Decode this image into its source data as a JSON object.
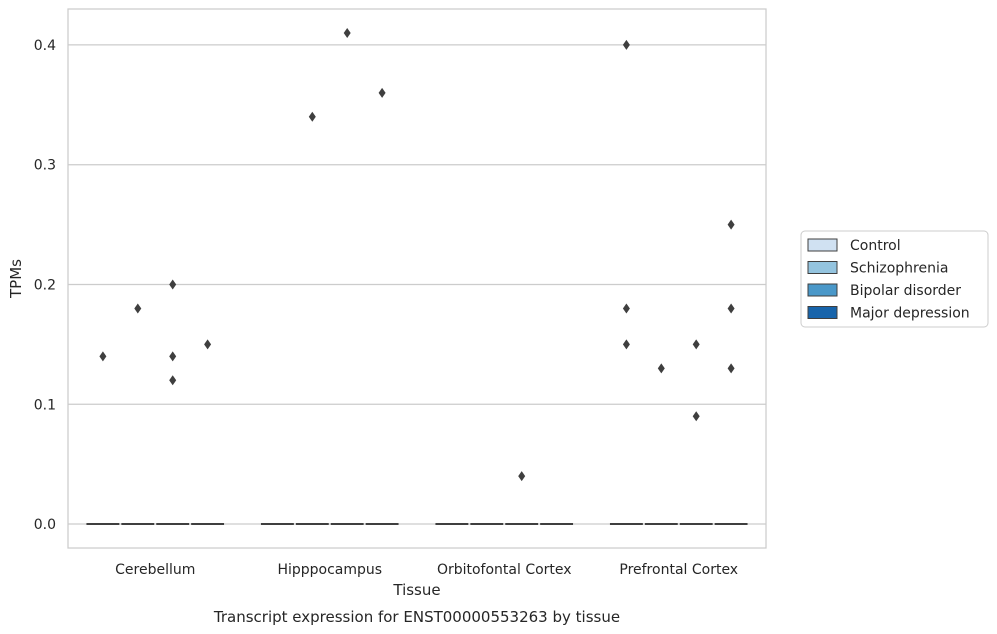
{
  "chart_data": {
    "type": "box",
    "xlabel": "Tissue",
    "ylabel": "TPMs",
    "caption": "Transcript expression for ENST00000553263 by tissue",
    "categories": [
      "Cerebellum",
      "Hipppocampus",
      "Orbitofontal Cortex",
      "Prefrontal Cortex"
    ],
    "ylim": [
      -0.02,
      0.43
    ],
    "yticks": [
      "0.0",
      "0.1",
      "0.2",
      "0.3",
      "0.4"
    ],
    "ytick_values": [
      0.0,
      0.1,
      0.2,
      0.3,
      0.4
    ],
    "grid": true,
    "legend_placement": "right",
    "series": [
      {
        "name": "Control",
        "color": "#d0e1f2",
        "median": [
          0,
          0,
          0,
          0
        ],
        "outliers": [
          [
            0.14
          ],
          [],
          [],
          [
            0.4,
            0.18,
            0.15
          ]
        ]
      },
      {
        "name": "Schizophrenia",
        "color": "#94c4df",
        "median": [
          0,
          0,
          0,
          0
        ],
        "outliers": [
          [
            0.18
          ],
          [
            0.34
          ],
          [],
          [
            0.13
          ]
        ]
      },
      {
        "name": "Bipolar disorder",
        "color": "#4a98c9",
        "median": [
          0,
          0,
          0,
          0
        ],
        "outliers": [
          [
            0.2,
            0.14,
            0.12
          ],
          [
            0.41
          ],
          [
            0.04
          ],
          [
            0.15,
            0.09
          ]
        ]
      },
      {
        "name": "Major depression",
        "color": "#1764ab",
        "median": [
          0,
          0,
          0,
          0
        ],
        "outliers": [
          [
            0.15
          ],
          [
            0.36
          ],
          [],
          [
            0.25,
            0.18,
            0.13
          ]
        ]
      }
    ]
  }
}
